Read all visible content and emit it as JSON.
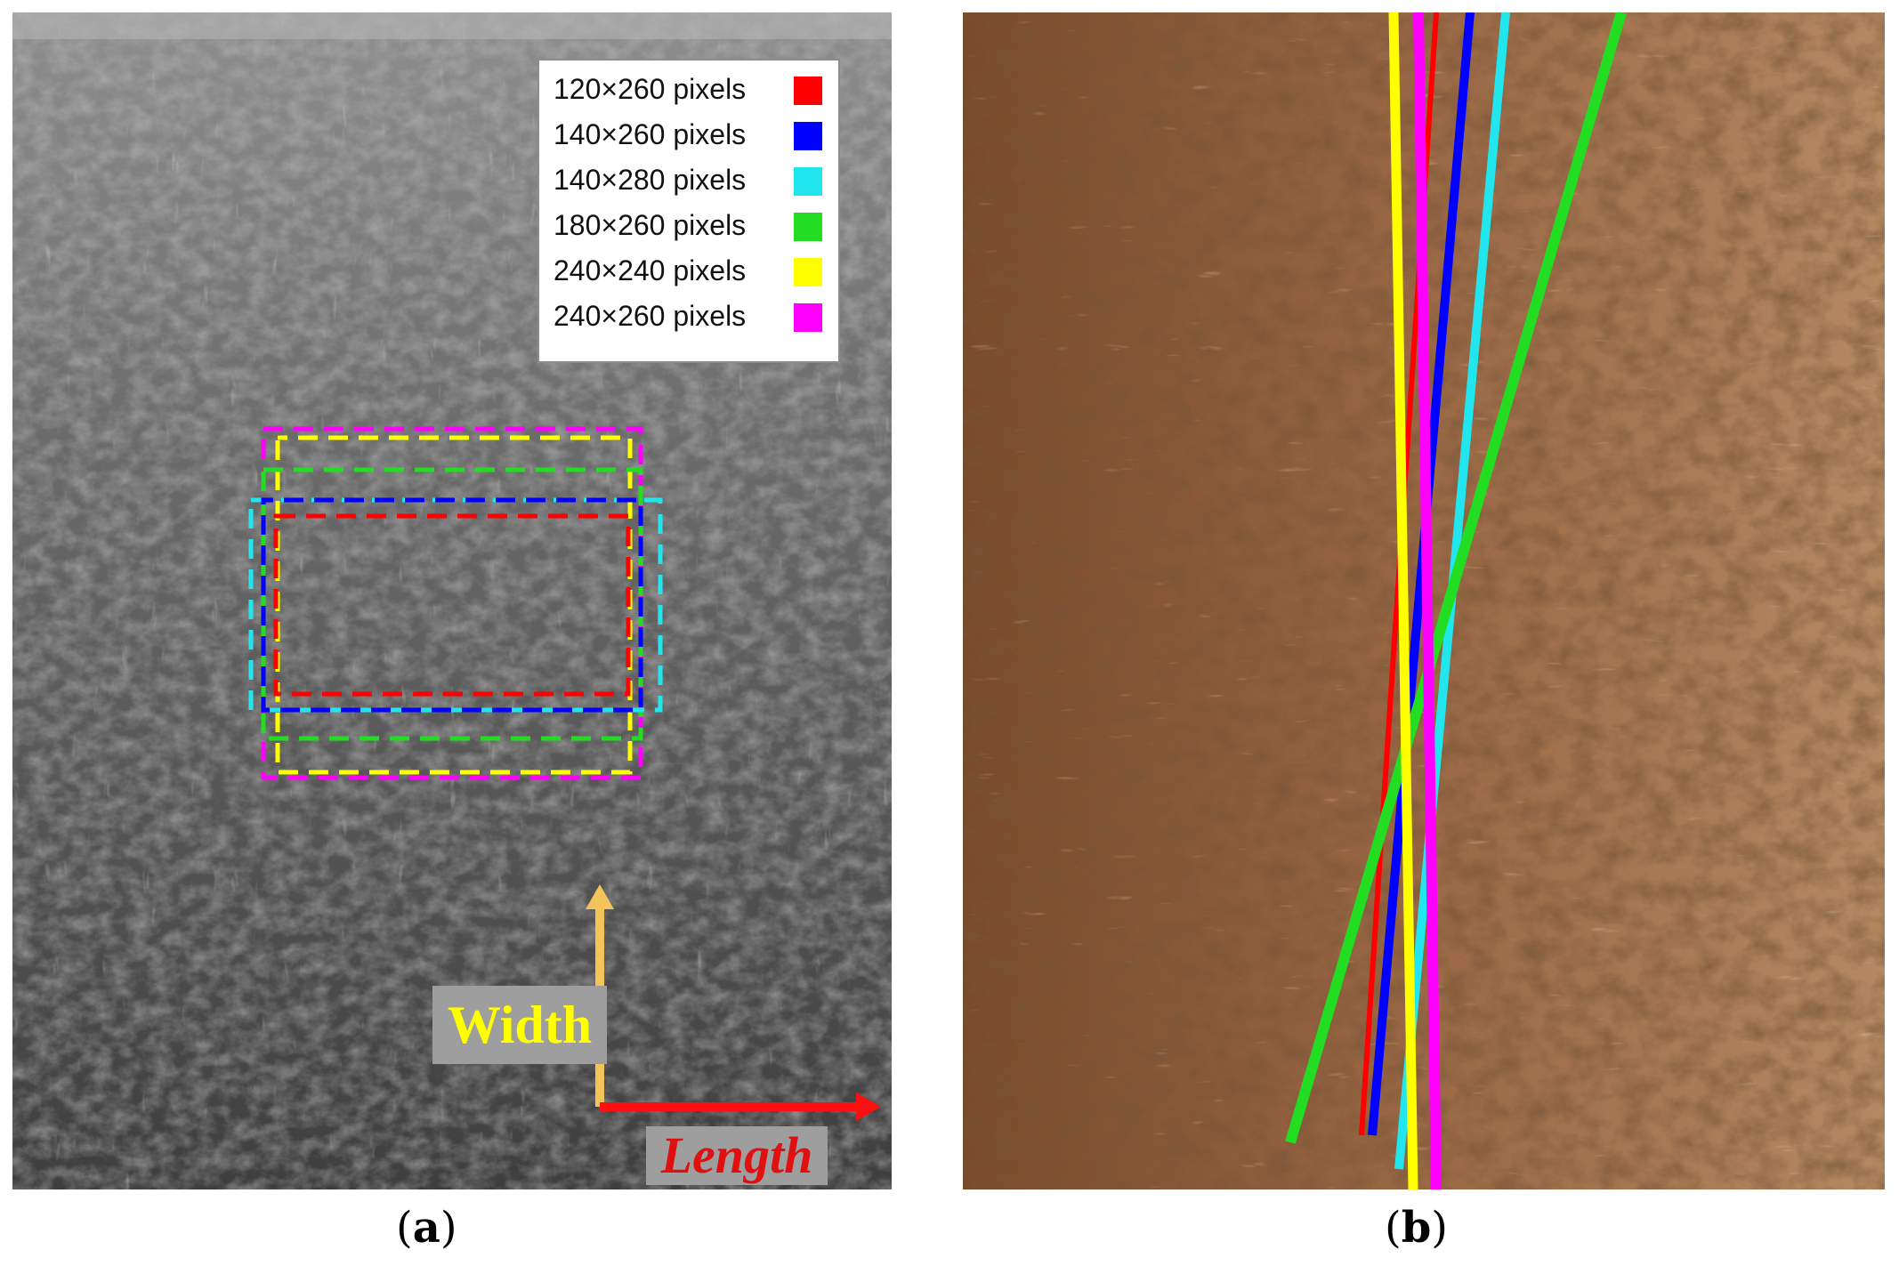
{
  "panel_a": {
    "legend": [
      {
        "label": "120×260 pixels",
        "color": "#ff0000"
      },
      {
        "label": "140×260 pixels",
        "color": "#0000ff"
      },
      {
        "label": "140×280 pixels",
        "color": "#22e6ee"
      },
      {
        "label": "180×260 pixels",
        "color": "#22dd22"
      },
      {
        "label": "240×240 pixels",
        "color": "#ffff00"
      },
      {
        "label": "240×260 pixels",
        "color": "#ff00ff"
      }
    ],
    "axis_width_label": "Width",
    "axis_length_label": "Length",
    "width_arrow_color": "#f2c45a",
    "length_arrow_color": "#ff1010"
  },
  "panel_b": {
    "line_colors": [
      "#ff0000",
      "#0000ff",
      "#22e6ee",
      "#22dd22",
      "#ffff00",
      "#ff00ff"
    ]
  },
  "captions": {
    "a": {
      "open": "(",
      "letter": "a",
      "close": ")"
    },
    "b": {
      "open": "(",
      "letter": "b",
      "close": ")"
    }
  }
}
